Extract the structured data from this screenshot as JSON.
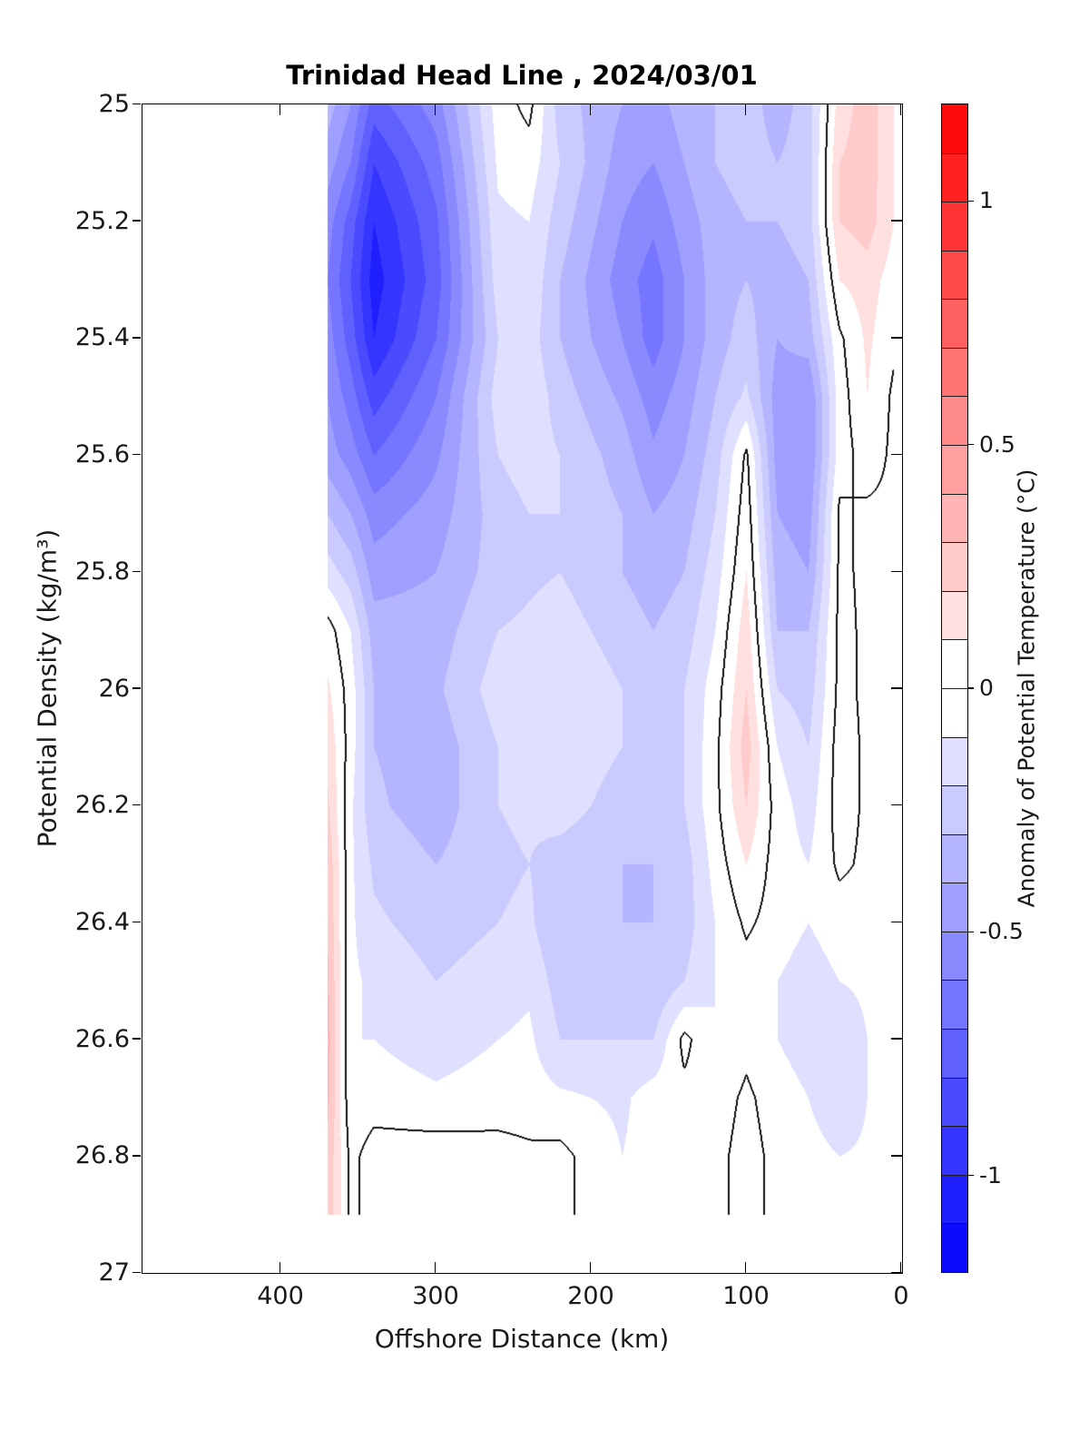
{
  "title": "Trinidad Head Line , 2024/03/01",
  "chart_data": {
    "type": "heatmap",
    "subtype": "filled_contour_section",
    "title": "Trinidad Head Line , 2024/03/01",
    "xlabel": "Offshore Distance (km)",
    "ylabel": "Potential Density (kg/m³)",
    "colorbar_label": "Anomaly of Potential Temperature (°C)",
    "x_axis": {
      "min": 0,
      "max": 489,
      "reversed": true,
      "grid": false,
      "ticks": [
        {
          "label": "400",
          "value": 400
        },
        {
          "label": "300",
          "value": 300
        },
        {
          "label": "200",
          "value": 200
        },
        {
          "label": "100",
          "value": 100
        },
        {
          "label": "0",
          "value": 0
        }
      ]
    },
    "y_axis": {
      "min": 25,
      "max": 27,
      "increasing_downward": true,
      "grid": false,
      "ticks": [
        {
          "label": "25",
          "value": 25
        },
        {
          "label": "25.2",
          "value": 25.2
        },
        {
          "label": "25.4",
          "value": 25.4
        },
        {
          "label": "25.6",
          "value": 25.6
        },
        {
          "label": "25.8",
          "value": 25.8
        },
        {
          "label": "26",
          "value": 26
        },
        {
          "label": "26.2",
          "value": 26.2
        },
        {
          "label": "26.4",
          "value": 26.4
        },
        {
          "label": "26.6",
          "value": 26.6
        },
        {
          "label": "26.8",
          "value": 26.8
        },
        {
          "label": "27",
          "value": 27
        }
      ]
    },
    "levels": {
      "step": 0.1,
      "min": -1.2,
      "max": 1.2,
      "zero_contour": true,
      "zero_contour_color": "#141414"
    },
    "colormap": {
      "type": "diverging",
      "negative_end": "#0000ff",
      "center": "#ffffff",
      "positive_end": "#ff0000",
      "white_band_halfwidth": 0.1,
      "saturation_value": 1.2
    },
    "colorbar_ticks": [
      {
        "label": "1",
        "value": 1
      },
      {
        "label": "0.5",
        "value": 0.5
      },
      {
        "label": "0",
        "value": 0
      },
      {
        "label": "-0.5",
        "value": -0.5
      },
      {
        "label": "-1",
        "value": -1
      }
    ],
    "data_extent": {
      "offshore_km": [
        5,
        370
      ],
      "potential_density": [
        25.0,
        26.9
      ]
    },
    "grid": {
      "offshore_km": [
        370,
        355,
        340,
        300,
        260,
        240,
        220,
        180,
        160,
        140,
        120,
        100,
        80,
        60,
        40,
        22,
        5
      ],
      "potential_density": [
        25.0,
        25.1,
        25.2,
        25.3,
        25.4,
        25.5,
        25.6,
        25.7,
        25.8,
        25.9,
        26.0,
        26.1,
        26.2,
        26.3,
        26.4,
        26.5,
        26.6,
        26.7,
        26.8
      ],
      "anomaly_degC": [
        [
          -0.35,
          -0.5,
          -0.75,
          -0.55,
          -0.05,
          0.03,
          -0.25,
          -0.4,
          -0.45,
          -0.35,
          -0.3,
          -0.25,
          -0.35,
          -0.25,
          0.15,
          0.25,
          0.12
        ],
        [
          -0.45,
          -0.6,
          -0.9,
          -0.65,
          -0.08,
          -0.05,
          -0.2,
          -0.45,
          -0.5,
          -0.4,
          -0.3,
          -0.25,
          -0.3,
          -0.25,
          0.2,
          0.25,
          0.12
        ],
        [
          -0.55,
          -0.75,
          -1.0,
          -0.72,
          -0.12,
          -0.1,
          -0.25,
          -0.5,
          -0.58,
          -0.45,
          -0.35,
          -0.3,
          -0.3,
          -0.25,
          0.2,
          0.25,
          0.1
        ],
        [
          -0.6,
          -0.8,
          -1.05,
          -0.75,
          -0.15,
          -0.12,
          -0.3,
          -0.55,
          -0.65,
          -0.5,
          -0.35,
          -0.3,
          -0.35,
          -0.3,
          0.1,
          0.15,
          0.05
        ],
        [
          -0.55,
          -0.75,
          -1.0,
          -0.7,
          -0.2,
          -0.15,
          -0.3,
          -0.5,
          -0.65,
          -0.5,
          -0.35,
          -0.25,
          -0.4,
          -0.35,
          -0.02,
          0.12,
          0.02
        ],
        [
          -0.5,
          -0.65,
          -0.85,
          -0.6,
          -0.15,
          -0.12,
          -0.25,
          -0.42,
          -0.55,
          -0.45,
          -0.3,
          -0.18,
          -0.45,
          -0.5,
          -0.05,
          0.1,
          -0.02
        ],
        [
          -0.45,
          -0.55,
          -0.7,
          -0.52,
          -0.2,
          -0.15,
          -0.2,
          -0.35,
          -0.48,
          -0.4,
          -0.25,
          0.02,
          -0.45,
          -0.5,
          -0.05,
          0.05,
          -0.02
        ],
        [
          -0.3,
          -0.4,
          -0.55,
          -0.45,
          -0.25,
          -0.2,
          -0.2,
          -0.3,
          -0.4,
          -0.35,
          -0.2,
          0.06,
          -0.4,
          -0.45,
          0.02,
          -0.02,
          -0.02
        ],
        [
          -0.15,
          -0.25,
          -0.45,
          -0.4,
          -0.25,
          -0.22,
          -0.2,
          -0.3,
          -0.35,
          -0.3,
          -0.15,
          0.1,
          -0.35,
          -0.4,
          0.02,
          -0.02,
          -0.02
        ],
        [
          0.05,
          -0.1,
          -0.35,
          -0.35,
          -0.2,
          -0.18,
          -0.15,
          -0.25,
          -0.3,
          -0.25,
          -0.1,
          0.16,
          -0.3,
          -0.3,
          0.03,
          -0.02,
          -0.02
        ],
        [
          0.12,
          -0.05,
          -0.3,
          -0.32,
          -0.15,
          -0.12,
          -0.1,
          -0.2,
          -0.25,
          -0.2,
          -0.05,
          0.2,
          -0.2,
          -0.25,
          0.03,
          -0.02,
          -0.02
        ],
        [
          0.18,
          -0.05,
          -0.3,
          -0.36,
          -0.2,
          -0.15,
          -0.12,
          -0.2,
          -0.25,
          -0.2,
          -0.03,
          0.25,
          -0.1,
          -0.2,
          0.05,
          -0.02,
          -0.02
        ],
        [
          0.22,
          -0.08,
          -0.28,
          -0.36,
          -0.2,
          -0.18,
          -0.15,
          -0.25,
          -0.25,
          -0.2,
          -0.03,
          0.2,
          -0.05,
          -0.15,
          0.05,
          -0.02,
          -0.02
        ],
        [
          0.28,
          -0.08,
          -0.22,
          -0.3,
          -0.22,
          -0.2,
          -0.25,
          -0.3,
          -0.3,
          -0.25,
          -0.06,
          0.1,
          -0.05,
          -0.1,
          0.02,
          -0.02,
          -0.02
        ],
        [
          0.3,
          -0.08,
          -0.18,
          -0.25,
          -0.2,
          -0.18,
          -0.3,
          -0.3,
          -0.3,
          -0.25,
          -0.1,
          0.02,
          -0.05,
          -0.1,
          -0.05,
          -0.05,
          -0.02
        ],
        [
          0.32,
          -0.08,
          -0.12,
          -0.2,
          -0.15,
          -0.12,
          -0.25,
          -0.25,
          -0.3,
          -0.2,
          -0.1,
          -0.05,
          -0.1,
          -0.15,
          -0.1,
          -0.08,
          -0.03
        ],
        [
          0.35,
          -0.1,
          -0.1,
          -0.15,
          -0.1,
          -0.08,
          -0.2,
          -0.2,
          -0.2,
          0.03,
          -0.1,
          -0.03,
          -0.1,
          -0.15,
          -0.18,
          -0.1,
          -0.03
        ],
        [
          0.33,
          -0.08,
          -0.05,
          -0.08,
          -0.05,
          -0.05,
          -0.08,
          -0.12,
          -0.05,
          -0.03,
          -0.05,
          0.02,
          -0.05,
          -0.1,
          -0.2,
          -0.1,
          -0.03
        ],
        [
          0.28,
          -0.03,
          0.05,
          0.06,
          0.04,
          0.02,
          0.03,
          -0.1,
          -0.05,
          -0.03,
          -0.03,
          0.04,
          -0.03,
          -0.05,
          -0.1,
          -0.08,
          -0.03
        ]
      ]
    }
  }
}
